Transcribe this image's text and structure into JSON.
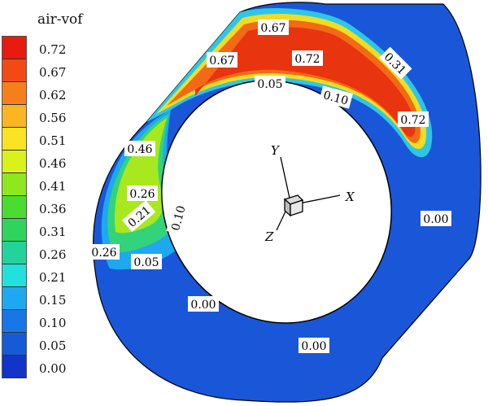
{
  "legend": {
    "title": "air-vof",
    "levels": [
      "0.72",
      "0.67",
      "0.62",
      "0.56",
      "0.51",
      "0.46",
      "0.41",
      "0.36",
      "0.31",
      "0.26",
      "0.21",
      "0.15",
      "0.10",
      "0.05",
      "0.00"
    ],
    "colors": [
      "#e81b0e",
      "#f24a14",
      "#f77f1a",
      "#fbb521",
      "#f9e322",
      "#d9f21c",
      "#8fe81d",
      "#4bdc30",
      "#2fd45c",
      "#23d39c",
      "#22e1dc",
      "#1ea8f0",
      "#1877e6",
      "#155bd8",
      "#1234c8"
    ]
  },
  "contour_labels": {
    "top_a": "0.67",
    "top_b": "0.67",
    "top_c": "0.72",
    "top_d": "0.31",
    "top_e": "0.05",
    "top_f": "0.10",
    "top_g": "0.72",
    "left_a": "0.46",
    "left_b": "0.26",
    "left_c": "0.21",
    "left_d": "0.10",
    "left_e": "0.26",
    "left_f": "0.05",
    "bottom_a": "0.00",
    "bottom_b": "0.00",
    "right_a": "0.00"
  },
  "axes": {
    "x": "X",
    "y": "Y",
    "z": "Z"
  },
  "colors": {
    "body": "#1a56d8",
    "outline": "#000000"
  }
}
